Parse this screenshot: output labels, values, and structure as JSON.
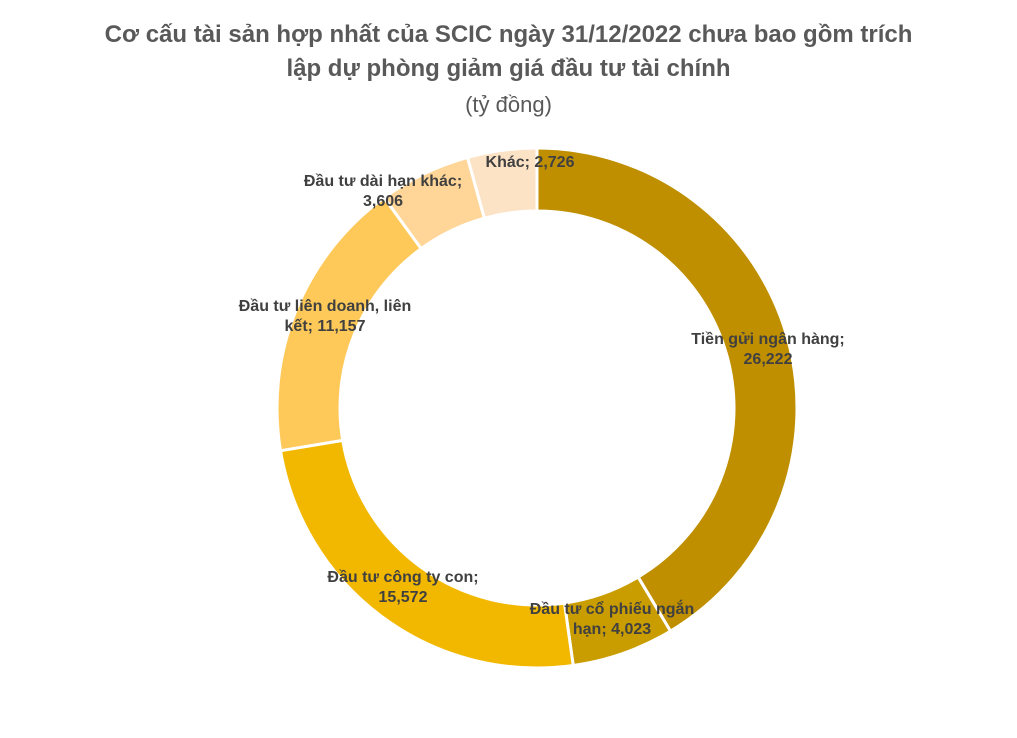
{
  "chart_data": {
    "type": "donut",
    "title": "Cơ cấu tài sản hợp nhất của SCIC ngày 31/12/2022 chưa bao gồm trích lập dự phòng giảm giá đầu tư tài chính",
    "subtitle": "(tỷ đồng)",
    "label_separator": ";",
    "categories": [
      "Tiền gửi ngân hàng",
      "Đầu tư cổ phiếu ngắn hạn",
      "Đầu tư công ty con",
      "Đầu tư liên doanh, liên kết",
      "Đầu tư dài hạn khác",
      "Khác"
    ],
    "values": [
      26222,
      4023,
      15572,
      11157,
      3606,
      2726
    ],
    "value_labels": [
      "26,222",
      "4,023",
      "15,572",
      "11,157",
      "3,606",
      "2,726"
    ],
    "colors": [
      "#bf8f00",
      "#c99c00",
      "#f2b800",
      "#fec959",
      "#ffd698",
      "#fde3c6"
    ]
  }
}
